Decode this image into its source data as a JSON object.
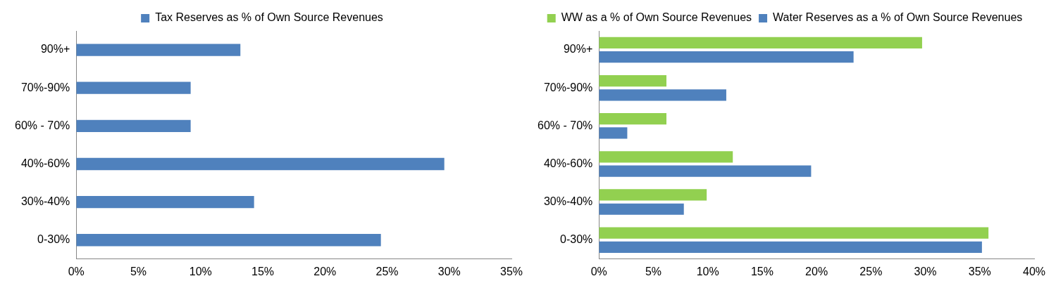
{
  "chart_data": [
    {
      "type": "bar",
      "orientation": "horizontal",
      "legend": "top",
      "grid": false,
      "categories": [
        "90%+",
        "70%-90%",
        "60% - 70%",
        "40%-60%",
        "30%-40%",
        "0-30%"
      ],
      "xlim": [
        0,
        35
      ],
      "xticks": [
        {
          "value": 0,
          "label": "0%"
        },
        {
          "value": 5,
          "label": "5%"
        },
        {
          "value": 10,
          "label": "10%"
        },
        {
          "value": 15,
          "label": "15%"
        },
        {
          "value": 20,
          "label": "20%"
        },
        {
          "value": 25,
          "label": "25%"
        },
        {
          "value": 30,
          "label": "30%"
        },
        {
          "value": 35,
          "label": "35%"
        }
      ],
      "series": [
        {
          "name": "Tax Reserves as % of Own Source Revenues",
          "color": "#4f81bd",
          "values": [
            13.2,
            9.2,
            9.2,
            29.6,
            14.3,
            24.5
          ]
        }
      ]
    },
    {
      "type": "bar",
      "orientation": "horizontal",
      "legend": "top",
      "grid": false,
      "categories": [
        "90%+",
        "70%-90%",
        "60% - 70%",
        "40%-60%",
        "30%-40%",
        "0-30%"
      ],
      "xlim": [
        0,
        40
      ],
      "xticks": [
        {
          "value": 0,
          "label": "0%"
        },
        {
          "value": 5,
          "label": "5%"
        },
        {
          "value": 10,
          "label": "10%"
        },
        {
          "value": 15,
          "label": "15%"
        },
        {
          "value": 20,
          "label": "20%"
        },
        {
          "value": 25,
          "label": "25%"
        },
        {
          "value": 30,
          "label": "30%"
        },
        {
          "value": 35,
          "label": "35%"
        },
        {
          "value": 40,
          "label": "40%"
        }
      ],
      "series": [
        {
          "name": "WW as a % of Own Source Revenues",
          "color": "#92d050",
          "values": [
            29.7,
            6.2,
            6.2,
            12.3,
            9.9,
            35.8
          ]
        },
        {
          "name": "Water Reserves as a % of Own Source Revenues",
          "color": "#4f81bd",
          "values": [
            23.4,
            11.7,
            2.6,
            19.5,
            7.8,
            35.2
          ]
        }
      ]
    }
  ]
}
